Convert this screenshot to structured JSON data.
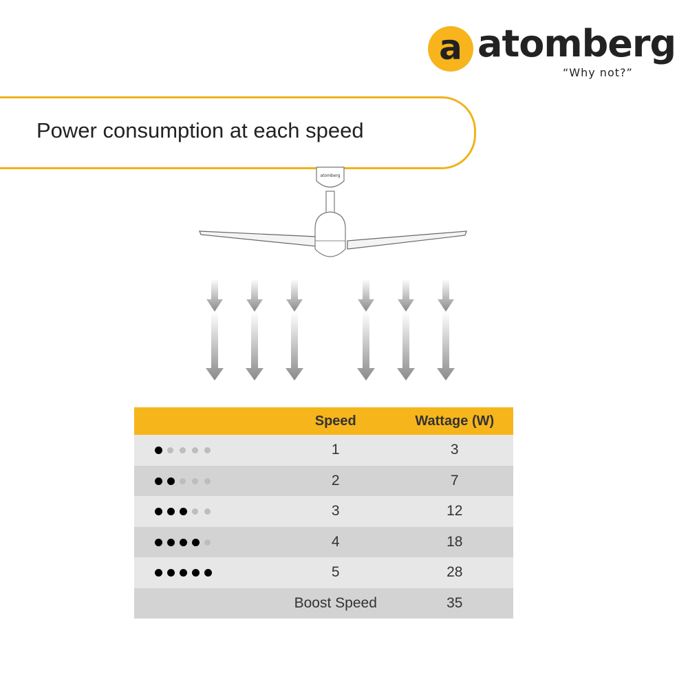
{
  "logo": {
    "brand": "atomberg",
    "tagline": "“Why not?”",
    "mark": "a",
    "color": "#f7b41c"
  },
  "title": "Power consumption at each speed",
  "fan": {
    "canopy_brand": "atomberg"
  },
  "table": {
    "headers": [
      "",
      "Speed",
      "Wattage (W)"
    ],
    "rows": [
      {
        "level": 1,
        "speed": "1",
        "wattage": "3"
      },
      {
        "level": 2,
        "speed": "2",
        "wattage": "7"
      },
      {
        "level": 3,
        "speed": "3",
        "wattage": "12"
      },
      {
        "level": 4,
        "speed": "4",
        "wattage": "18"
      },
      {
        "level": 5,
        "speed": "5",
        "wattage": "28"
      },
      {
        "level": 0,
        "speed": "Boost Speed",
        "wattage": "35"
      }
    ],
    "max_level": 5,
    "header_color": "#f7b51c"
  }
}
